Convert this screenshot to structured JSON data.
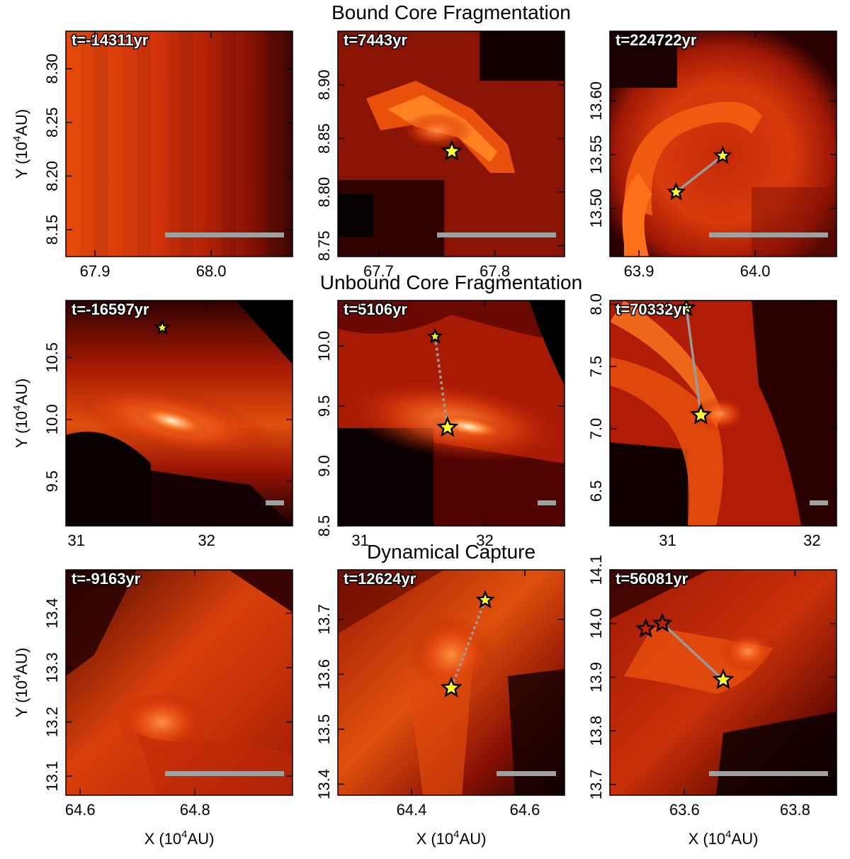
{
  "colors": {
    "bg_dark": "#0b0000",
    "bg_mid": "#b81800",
    "bg_bright": "#ff6410",
    "highlight": "#ffd0a0",
    "star_fill": "#ffff30",
    "star_edge": "#000000",
    "link": "#9a9a9a",
    "scale_bar": "#a0a0a0"
  },
  "row_titles": [
    "Bound Core Fragmentation",
    "Unbound Core Fragmentation",
    "Dynamical Capture"
  ],
  "xlabel": "X (10",
  "xlabel_sup": "4",
  "xlabel_tail": "AU)",
  "ylabel": "Y (10",
  "ylabel_sup": "4",
  "ylabel_tail": "AU)",
  "chart_data": [
    {
      "type": "heatmap",
      "row": 0,
      "col": 0,
      "time_label": "t=-14311yr",
      "xlim": [
        67.875,
        68.07
      ],
      "ylim": [
        8.125,
        8.335
      ],
      "xticks": [
        67.9,
        68.0
      ],
      "yticks": [
        8.15,
        8.2,
        8.25,
        8.3
      ],
      "xtick_labels": [
        "67.9",
        "68.0"
      ],
      "ytick_labels": [
        "8.15",
        "8.20",
        "8.25",
        "8.30"
      ],
      "stars": [],
      "links": [],
      "pixelated": true
    },
    {
      "type": "heatmap",
      "row": 0,
      "col": 1,
      "time_label": "t=7443yr",
      "xlim": [
        67.665,
        67.86
      ],
      "ylim": [
        8.74,
        8.95
      ],
      "xticks": [
        67.7,
        67.8
      ],
      "yticks": [
        8.75,
        8.8,
        8.85,
        8.9
      ],
      "xtick_labels": [
        "67.7",
        "67.8"
      ],
      "ytick_labels": [
        "8.75",
        "8.80",
        "8.85",
        "8.90"
      ],
      "stars": [
        {
          "x": 67.763,
          "y": 8.838,
          "size": "large"
        }
      ],
      "links": [],
      "pixelated": true
    },
    {
      "type": "heatmap",
      "row": 0,
      "col": 2,
      "time_label": "t=224722yr",
      "xlim": [
        63.875,
        64.07
      ],
      "ylim": [
        13.455,
        13.665
      ],
      "xticks": [
        63.9,
        64.0
      ],
      "yticks": [
        13.5,
        13.55,
        13.6
      ],
      "xtick_labels": [
        "63.9",
        "64.0"
      ],
      "ytick_labels": [
        "13.50",
        "13.55",
        "13.60"
      ],
      "stars": [
        {
          "x": 63.932,
          "y": 13.515,
          "size": "medium"
        },
        {
          "x": 63.972,
          "y": 13.549,
          "size": "medium"
        }
      ],
      "links": [
        {
          "from": 0,
          "to": 1,
          "style": "solid"
        }
      ],
      "pixelated": true
    },
    {
      "type": "heatmap",
      "row": 1,
      "col": 0,
      "time_label": "t=-16597yr",
      "xlim": [
        30.92,
        32.66
      ],
      "ylim": [
        9.14,
        10.96
      ],
      "xticks": [
        31,
        32
      ],
      "yticks": [
        9.5,
        10.0,
        10.5
      ],
      "xtick_labels": [
        "31",
        "32"
      ],
      "ytick_labels": [
        "9.5",
        "10.0",
        "10.5"
      ],
      "stars": [
        {
          "x": 31.66,
          "y": 10.74,
          "size": "small"
        }
      ],
      "links": [],
      "pixelated": false
    },
    {
      "type": "heatmap",
      "row": 1,
      "col": 1,
      "time_label": "t=5106yr",
      "xlim": [
        30.82,
        32.64
      ],
      "ylim": [
        8.5,
        10.38
      ],
      "xticks": [
        31,
        32
      ],
      "yticks": [
        8.5,
        9.0,
        9.5,
        10.0
      ],
      "xtick_labels": [
        "31",
        "32"
      ],
      "ytick_labels": [
        "8.5",
        "9.0",
        "9.5",
        "10.0"
      ],
      "stars": [
        {
          "x": 31.6,
          "y": 10.08,
          "size": "small"
        },
        {
          "x": 31.7,
          "y": 9.32,
          "size": "large"
        }
      ],
      "links": [
        {
          "from": 0,
          "to": 1,
          "style": "dotted"
        }
      ],
      "pixelated": false
    },
    {
      "type": "heatmap",
      "row": 1,
      "col": 2,
      "time_label": "t=70332yr",
      "xlim": [
        30.6,
        32.17
      ],
      "ylim": [
        6.22,
        8.03
      ],
      "xticks": [
        31,
        32
      ],
      "yticks": [
        6.5,
        7.0,
        7.5,
        8.0
      ],
      "xtick_labels": [
        "31",
        "32"
      ],
      "ytick_labels": [
        "6.5",
        "7.0",
        "7.5",
        "8.0"
      ],
      "stars": [
        {
          "x": 31.13,
          "y": 7.97,
          "size": "medium"
        },
        {
          "x": 31.23,
          "y": 7.11,
          "size": "large"
        }
      ],
      "links": [
        {
          "from": 0,
          "to": 1,
          "style": "solid"
        }
      ],
      "pixelated": false
    },
    {
      "type": "heatmap",
      "row": 2,
      "col": 0,
      "time_label": "t=-9163yr",
      "xlim": [
        64.575,
        64.97
      ],
      "ylim": [
        13.065,
        13.48
      ],
      "xticks": [
        64.6,
        64.8
      ],
      "yticks": [
        13.1,
        13.2,
        13.3,
        13.4
      ],
      "xtick_labels": [
        "64.6",
        "64.8"
      ],
      "ytick_labels": [
        "13.1",
        "13.2",
        "13.3",
        "13.4"
      ],
      "stars": [],
      "links": [],
      "pixelated": false
    },
    {
      "type": "heatmap",
      "row": 2,
      "col": 1,
      "time_label": "t=12624yr",
      "xlim": [
        64.27,
        64.67
      ],
      "ylim": [
        13.38,
        13.79
      ],
      "xticks": [
        64.4,
        64.6
      ],
      "yticks": [
        13.4,
        13.5,
        13.6,
        13.7
      ],
      "xtick_labels": [
        "64.4",
        "64.6"
      ],
      "ytick_labels": [
        "13.4",
        "13.5",
        "13.6",
        "13.7"
      ],
      "stars": [
        {
          "x": 64.53,
          "y": 13.735,
          "size": "medium"
        },
        {
          "x": 64.47,
          "y": 13.575,
          "size": "large"
        }
      ],
      "links": [
        {
          "from": 0,
          "to": 1,
          "style": "dotted"
        }
      ],
      "pixelated": false
    },
    {
      "type": "heatmap",
      "row": 2,
      "col": 2,
      "time_label": "t=56081yr",
      "xlim": [
        63.465,
        63.875
      ],
      "ylim": [
        13.68,
        14.1
      ],
      "xticks": [
        63.6,
        63.8
      ],
      "yticks": [
        13.7,
        13.8,
        13.9,
        14.0,
        14.1
      ],
      "xtick_labels": [
        "63.6",
        "63.8"
      ],
      "ytick_labels": [
        "13.7",
        "13.8",
        "13.9",
        "14.0",
        "14.1"
      ],
      "stars": [
        {
          "x": 63.53,
          "y": 13.99,
          "size": "hollow"
        },
        {
          "x": 63.56,
          "y": 14.0,
          "size": "hollow"
        },
        {
          "x": 63.67,
          "y": 13.895,
          "size": "large"
        }
      ],
      "links": [
        {
          "from": 1,
          "to": 2,
          "style": "solid"
        }
      ],
      "pixelated": false
    }
  ]
}
